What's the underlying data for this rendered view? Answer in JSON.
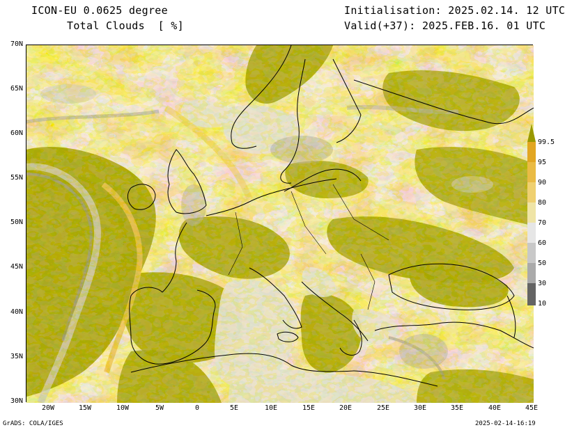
{
  "header": {
    "model_title": "ICON-EU 0.0625 degree",
    "variable_title": "Total Clouds  [ %]",
    "initialisation": "Initialisation: 2025.02.14. 12 UTC",
    "valid": "Valid(+37): 2025.FEB.16. 01 UTC"
  },
  "axes": {
    "lat_labels": [
      "70N",
      "65N",
      "60N",
      "55N",
      "50N",
      "45N",
      "40N",
      "35N",
      "30N"
    ],
    "lon_labels": [
      "20W",
      "15W",
      "10W",
      "5W",
      "0",
      "5E",
      "10E",
      "15E",
      "20E",
      "25E",
      "30E",
      "35E",
      "40E",
      "45E"
    ]
  },
  "colorbar": {
    "labels": [
      "99.5",
      "95",
      "90",
      "80",
      "70",
      "60",
      "50",
      "30",
      "10"
    ],
    "colors": [
      "#999900",
      "#e2a622",
      "#eabb44",
      "#efd070",
      "#efe4a6",
      "#e6e6e6",
      "#c8c8c8",
      "#aaaaaa",
      "#8a8a8a",
      "#646464"
    ]
  },
  "footer": {
    "left": "GrADS: COLA/IGES",
    "right": "2025-02-14-16:19"
  }
}
